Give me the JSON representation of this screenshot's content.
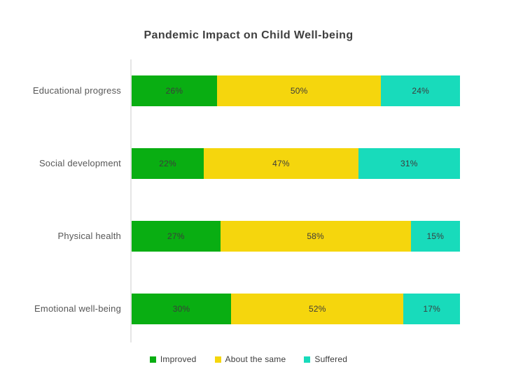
{
  "title": "Pandemic Impact on Child Well-being",
  "chart_data": {
    "type": "bar",
    "orientation": "horizontal",
    "stacked": true,
    "title": "Pandemic Impact on Child Well-being",
    "categories": [
      "Educational progress",
      "Social development",
      "Physical health",
      "Emotional well-being"
    ],
    "series": [
      {
        "name": "Improved",
        "color": "#09ae12",
        "values": [
          26,
          22,
          27,
          30
        ]
      },
      {
        "name": "About the same",
        "color": "#f5d60d",
        "values": [
          50,
          47,
          58,
          52
        ]
      },
      {
        "name": "Suffered",
        "color": "#18dbbb",
        "values": [
          24,
          31,
          15,
          17
        ]
      }
    ],
    "value_suffix": "%",
    "xlabel": "",
    "ylabel": "",
    "xlim": [
      0,
      100
    ],
    "grid": "off",
    "legend_position": "bottom"
  },
  "colors": {
    "background": "#ffffff",
    "title_text": "#3f3f3f",
    "category_text": "#575757",
    "value_text": "#3c3c3c",
    "axis_line": "#e5e5e5"
  }
}
